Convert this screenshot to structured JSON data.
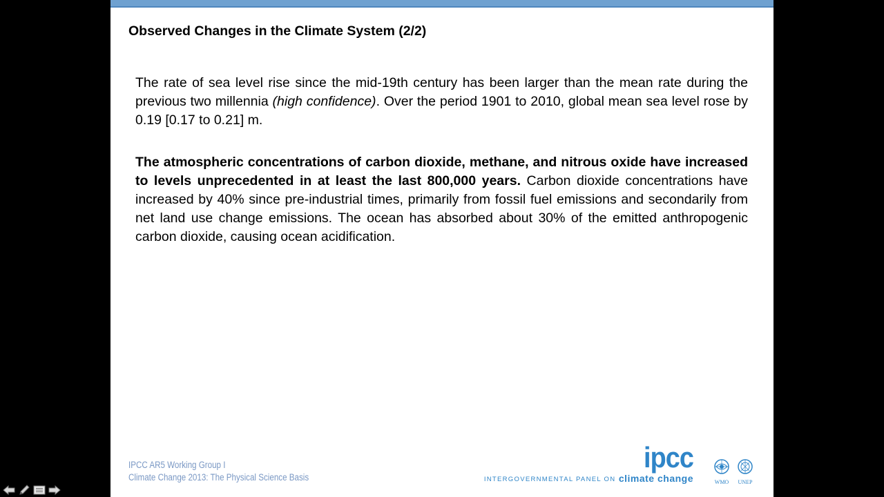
{
  "slide": {
    "title": "Observed Changes in the Climate System (2/2)",
    "paragraph1": {
      "part1": "The rate of sea level rise since the mid-19th century has been larger than the mean rate during the previous two millennia ",
      "italic": "(high confidence)",
      "part2": ". Over the period 1901 to 2010, global mean sea level rose by 0.19 [0.17 to 0.21] m."
    },
    "paragraph2": {
      "bold": "The atmospheric concentrations of carbon dioxide, methane, and nitrous oxide have increased to levels unprecedented in at least the last 800,000 years.",
      "rest": " Carbon dioxide concentrations have increased by 40% since pre-industrial times, primarily from fossil fuel emissions and secondarily from net land use change emissions. The ocean has absorbed about 30% of the emitted anthropogenic carbon dioxide, causing ocean acidification."
    }
  },
  "footer": {
    "line1": "IPCC AR5 Working Group I",
    "line2": "Climate Change 2013:  The Physical Science Basis",
    "logo_word": "ipcc",
    "logo_sub_small": "INTERGOVERNMENTAL PANEL ON",
    "logo_sub_big": "climate change",
    "wmo_label": "WMO",
    "unep_label": "UNEP"
  },
  "nav": {
    "icons": [
      "arrow-left-icon",
      "pen-icon",
      "menu-icon",
      "arrow-right-icon"
    ]
  },
  "colors": {
    "top_bar": "#6fa1d0",
    "footer_text": "#7a98c4",
    "ipcc_blue": "#2f85c8",
    "background": "#000000"
  }
}
